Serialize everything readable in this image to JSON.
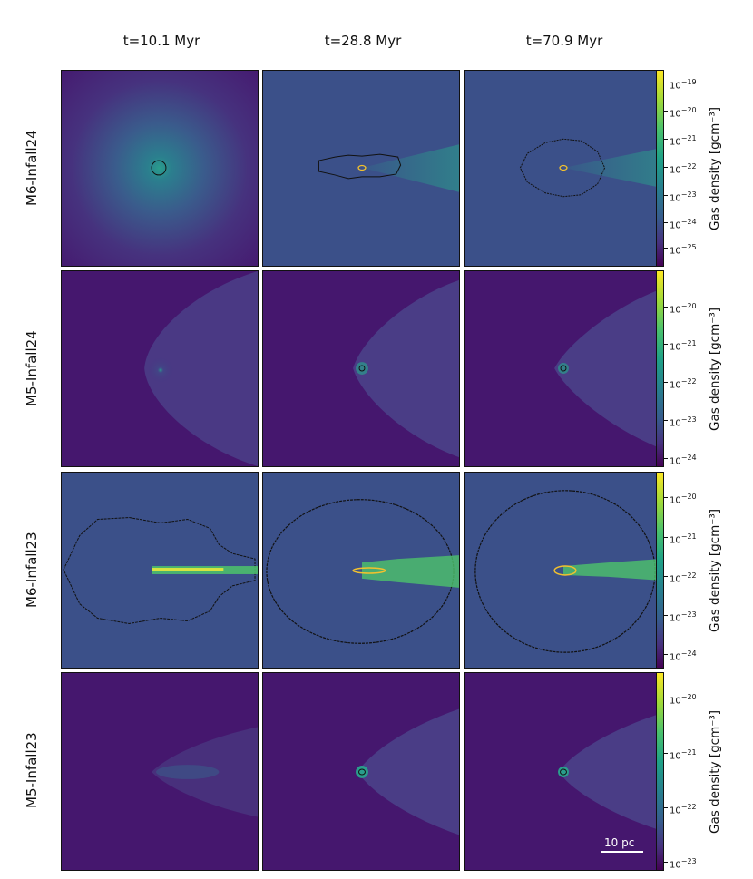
{
  "columns": [
    "t=10.1 Myr",
    "t=28.8 Myr",
    "t=70.9 Myr"
  ],
  "rows": [
    "M6-Infall24",
    "M5-Infall24",
    "M6-Infall23",
    "M5-Infall23"
  ],
  "colorbar": {
    "label": "Gas density [gcm⁻³]",
    "colormap": "viridis",
    "scale": "log",
    "rows": [
      {
        "ticks": [
          "10",
          "10",
          "10",
          "10",
          "10",
          "10",
          "10"
        ],
        "exponents": [
          "-19",
          "-20",
          "-21",
          "-22",
          "-23",
          "-24",
          "-25"
        ]
      },
      {
        "ticks": [
          "10",
          "10",
          "10",
          "10",
          "10"
        ],
        "exponents": [
          "-20",
          "-21",
          "-22",
          "-23",
          "-24"
        ]
      },
      {
        "ticks": [
          "10",
          "10",
          "10",
          "10",
          "10"
        ],
        "exponents": [
          "-20",
          "-21",
          "-22",
          "-23",
          "-24"
        ]
      },
      {
        "ticks": [
          "10",
          "10",
          "10",
          "10"
        ],
        "exponents": [
          "-20",
          "-21",
          "-22",
          "-23"
        ]
      }
    ]
  },
  "scale_bar": {
    "label": "10 pc"
  },
  "colors": {
    "bg_row1": "#3b5089",
    "bg_dark": "#45176e",
    "contour_outer": "#111111",
    "contour_inner": "#f2c12e",
    "stream": "#4ec36b"
  }
}
